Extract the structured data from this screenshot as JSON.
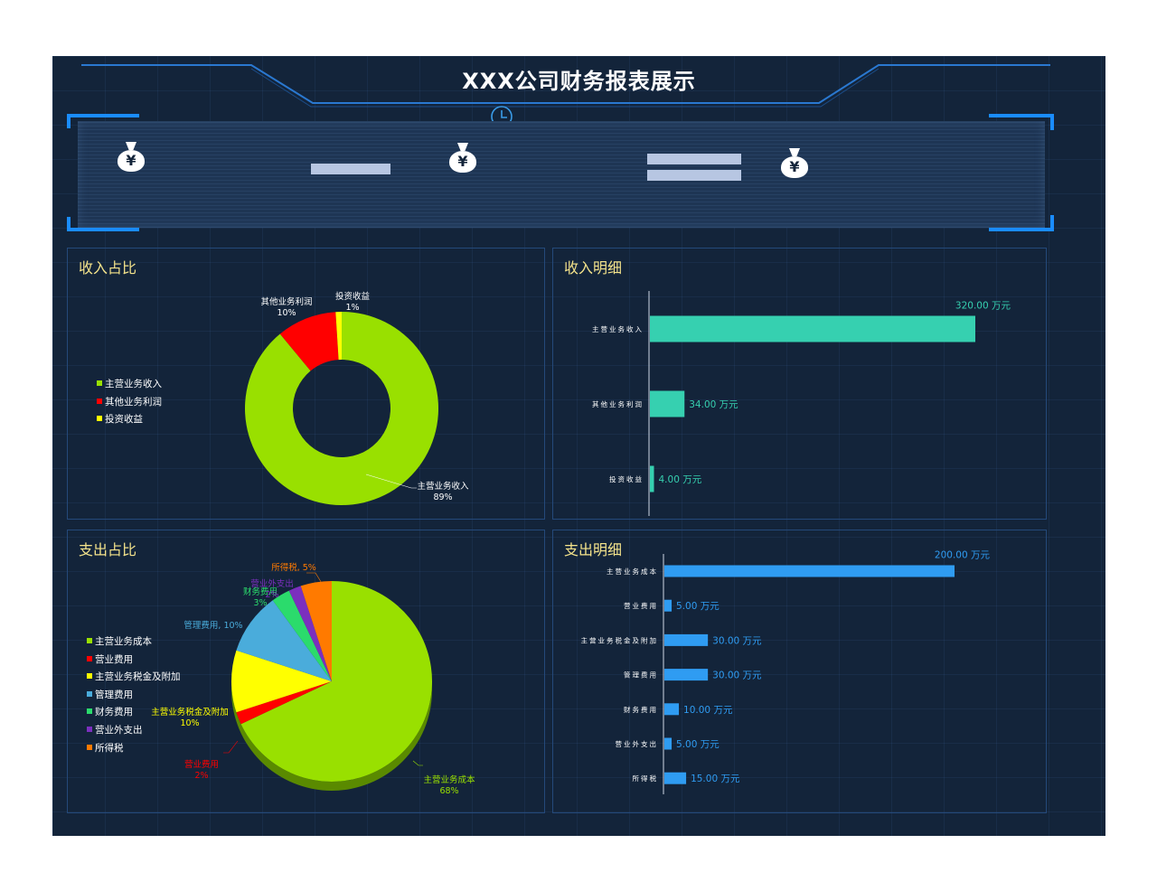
{
  "header": {
    "title": "XXX公司财务报表展示",
    "clock_icon": "clock-icon"
  },
  "kpis": [
    {
      "icon": "money-bag-icon",
      "symbol": "¥"
    },
    {
      "icon": "money-bag-icon",
      "symbol": "¥"
    },
    {
      "icon": "money-bag-icon",
      "symbol": "¥"
    }
  ],
  "colors": {
    "board": "#13243a",
    "panel_border": "#24497a",
    "title": "#f4e38b",
    "income_bar": "#36d0b0",
    "expense_bar": "#2f9cf2"
  },
  "income_share": {
    "title": "收入占比",
    "legend": [
      {
        "label": "主营业务收入",
        "color": "#99e000"
      },
      {
        "label": "其他业务利润",
        "color": "#ff0000"
      },
      {
        "label": "投资收益",
        "color": "#ffff00"
      }
    ]
  },
  "income_detail": {
    "title": "收入明细"
  },
  "expense_share": {
    "title": "支出占比",
    "legend": [
      {
        "label": "主营业务成本",
        "color": "#99e000"
      },
      {
        "label": "营业费用",
        "color": "#ff0000"
      },
      {
        "label": "主营业务税金及附加",
        "color": "#ffff00"
      },
      {
        "label": "管理费用",
        "color": "#4aacdb"
      },
      {
        "label": "财务费用",
        "color": "#2bdb6c"
      },
      {
        "label": "营业外支出",
        "color": "#7b2fbe"
      },
      {
        "label": "所得税",
        "color": "#ff7a00"
      }
    ]
  },
  "expense_detail": {
    "title": "支出明细"
  },
  "chart_data": [
    {
      "type": "pie",
      "variant": "donut",
      "categories": [
        "主营业务收入",
        "其他业务利润",
        "投资收益"
      ],
      "values": [
        89,
        10,
        1
      ],
      "labels": [
        {
          "name": "主营业务收入",
          "pct": "89%"
        },
        {
          "name": "其他业务利润",
          "pct": "10%"
        },
        {
          "name": "投资收益",
          "pct": "1%"
        }
      ],
      "colors": [
        "#99e000",
        "#ff0000",
        "#ffff00"
      ],
      "legend": "left"
    },
    {
      "type": "bar",
      "orientation": "horizontal",
      "categories": [
        "主营业务收入",
        "其他业务利润",
        "投资收益"
      ],
      "values": [
        320,
        34,
        4
      ],
      "value_labels": [
        "320.00 万元",
        "34.00 万元",
        "4.00 万元"
      ],
      "color": "#36d0b0"
    },
    {
      "type": "pie",
      "variant": "3d",
      "categories": [
        "主营业务成本",
        "营业费用",
        "主营业务税金及附加",
        "管理费用",
        "财务费用",
        "营业外支出",
        "所得税"
      ],
      "values": [
        68,
        2,
        10,
        10,
        3,
        2,
        5
      ],
      "labels": [
        {
          "name": "主营业务成本",
          "pct": "68%"
        },
        {
          "name": "营业费用",
          "pct": "2%"
        },
        {
          "name": "主营业务税金及附加",
          "pct": "10%"
        },
        {
          "name": "管理费用",
          "pct": "10%"
        },
        {
          "name": "财务费用",
          "pct": "3%"
        },
        {
          "name": "营业外支出",
          "pct": "2%"
        },
        {
          "name": "所得税",
          "pct": "5%"
        }
      ],
      "colors": [
        "#99e000",
        "#ff0000",
        "#ffff00",
        "#4aacdb",
        "#2bdb6c",
        "#7b2fbe",
        "#ff7a00"
      ],
      "legend": "left"
    },
    {
      "type": "bar",
      "orientation": "horizontal",
      "categories": [
        "主营业务成本",
        "营业费用",
        "主营业务税金及附加",
        "管理费用",
        "财务费用",
        "营业外支出",
        "所得税"
      ],
      "values": [
        200,
        5,
        30,
        30,
        10,
        5,
        15
      ],
      "value_labels": [
        "200.00 万元",
        "5.00 万元",
        "30.00 万元",
        "30.00 万元",
        "10.00 万元",
        "5.00 万元",
        "15.00 万元"
      ],
      "color": "#2f9cf2"
    }
  ]
}
